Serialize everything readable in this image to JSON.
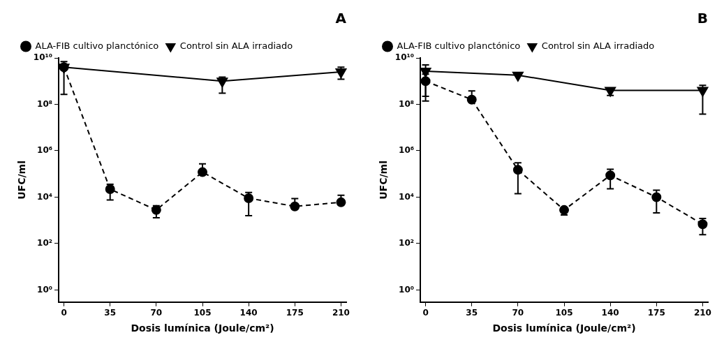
{
  "chart_data": [
    {
      "type": "line",
      "title": "A",
      "xlabel": "Dosis lumínica (Joule/cm²)",
      "ylabel": "UFC/ml",
      "log": "y",
      "legend": "top left",
      "grid": false,
      "xlim": [
        -4,
        214
      ],
      "xticks": [
        0,
        35,
        70,
        105,
        140,
        175,
        210
      ],
      "ylim": [
        0.3,
        10000000000
      ],
      "yticks": [
        {
          "value": 1,
          "label": "10⁰"
        },
        {
          "value": 100,
          "label": "10²"
        },
        {
          "value": 10000,
          "label": "10⁴"
        },
        {
          "value": 1000000,
          "label": "10⁶"
        },
        {
          "value": 100000000,
          "label": "10⁸"
        },
        {
          "value": 10000000000,
          "label": "10¹⁰"
        }
      ],
      "series": [
        {
          "name": "ALA-FIB cultivo planctónico",
          "color": "#000000",
          "marker": "circle",
          "line_style": "dashed",
          "x": [
            0,
            35,
            70,
            105,
            140,
            175,
            210
          ],
          "values": [
            4000000000,
            22000,
            2800,
            120000,
            9000,
            4000,
            6000
          ],
          "errors": [
            [
              270000000,
              7000000000
            ],
            [
              7600,
              36000
            ],
            [
              1300,
              4300
            ],
            [
              120000,
              270000
            ],
            [
              1600,
              16000
            ],
            [
              4000,
              8700
            ],
            [
              6000,
              12000
            ]
          ]
        },
        {
          "name": "Control sin ALA irradiado",
          "color": "#000000",
          "marker": "triangle",
          "line_style": "solid",
          "x": [
            0,
            120,
            210
          ],
          "values": [
            4000000000,
            1000000000,
            2500000000
          ],
          "errors": [
            null,
            [
              300000000,
              1500000000
            ],
            [
              1200000000,
              4000000000
            ]
          ]
        }
      ]
    },
    {
      "type": "line",
      "title": "B",
      "xlabel": "Dosis lumínica (Joule/cm²)",
      "ylabel": "UFC/ml",
      "log": "y",
      "legend": "top left",
      "grid": false,
      "xlim": [
        -4,
        214
      ],
      "xticks": [
        0,
        35,
        70,
        105,
        140,
        175,
        210
      ],
      "ylim": [
        0.3,
        10000000000
      ],
      "yticks": [
        {
          "value": 1,
          "label": "10⁰"
        },
        {
          "value": 100,
          "label": "10²"
        },
        {
          "value": 10000,
          "label": "10⁴"
        },
        {
          "value": 1000000,
          "label": "10⁶"
        },
        {
          "value": 100000000,
          "label": "10⁸"
        },
        {
          "value": 10000000000,
          "label": "10¹⁰"
        }
      ],
      "series": [
        {
          "name": "ALA-FIB cultivo planctónico",
          "color": "#000000",
          "marker": "circle",
          "line_style": "dashed",
          "x": [
            0,
            35,
            70,
            105,
            140,
            175,
            210
          ],
          "values": [
            1000000000,
            160000000,
            150000,
            2800,
            87000,
            10000,
            680
          ],
          "errors": [
            [
              140000000,
              2000000000
            ],
            [
              160000000,
              380000000
            ],
            [
              14000,
              300000
            ],
            [
              1700,
              3600
            ],
            [
              23000,
              160000
            ],
            [
              2100,
              20000
            ],
            [
              240,
              1200
            ]
          ]
        },
        {
          "name": "Control sin ALA irradiado",
          "color": "#000000",
          "marker": "triangle",
          "line_style": "solid",
          "x": [
            0,
            70,
            140,
            210
          ],
          "values": [
            2700000000,
            1800000000,
            400000000,
            400000000
          ],
          "errors": [
            [
              220000000,
              5000000000
            ],
            null,
            [
              240000000,
              500000000
            ],
            [
              38000000,
              660000000
            ]
          ]
        }
      ]
    }
  ]
}
